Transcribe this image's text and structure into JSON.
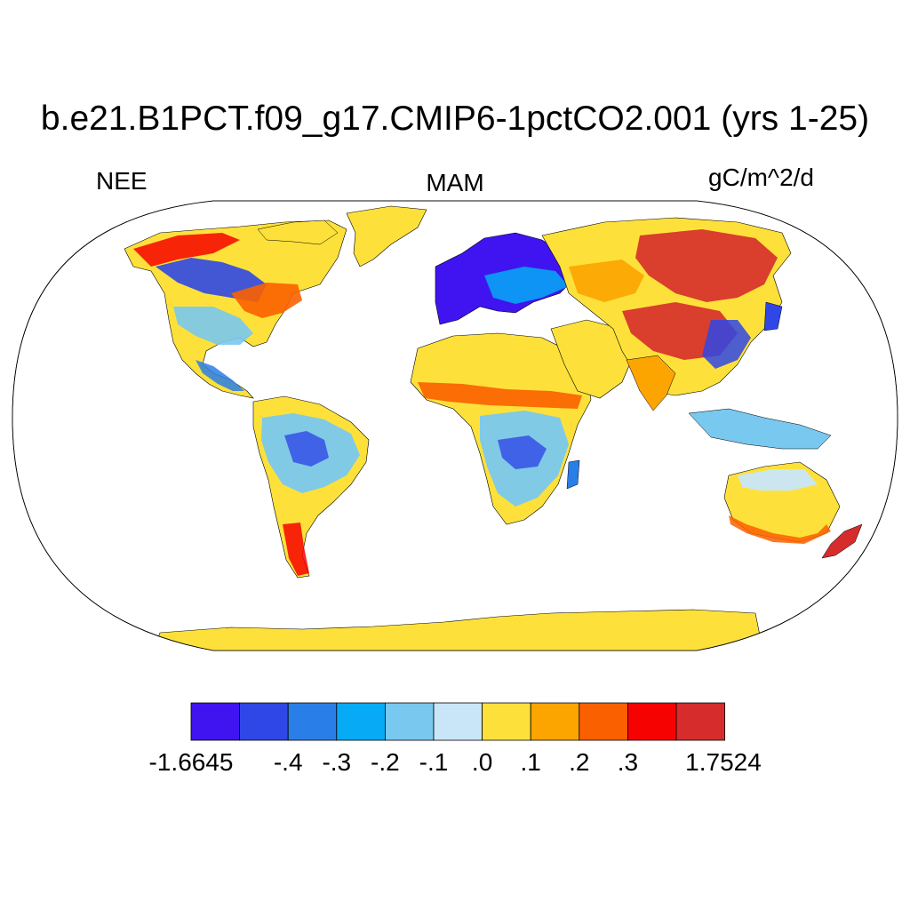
{
  "title": "b.e21.B1PCT.f09_g17.CMIP6-1pctCO2.001 (yrs 1-25)",
  "variable": "NEE",
  "season": "MAM",
  "units": "gC/m^2/d",
  "projection": "Robinson",
  "colorbar": {
    "colors": [
      "#3f14f0",
      "#2f47e6",
      "#2a7ee8",
      "#06aaf5",
      "#79c8ef",
      "#c8e6f8",
      "#fde13a",
      "#fca400",
      "#fb6000",
      "#f60200",
      "#d62c2c"
    ],
    "labels": [
      "-1.6645",
      "-.4",
      "-.3",
      "-.2",
      "-.1",
      ".0",
      ".1",
      ".2",
      ".3",
      "1.7524"
    ]
  },
  "colors": {
    "land_default": "#fde13a",
    "ocean": "#ffffff",
    "outline": "#000000"
  }
}
